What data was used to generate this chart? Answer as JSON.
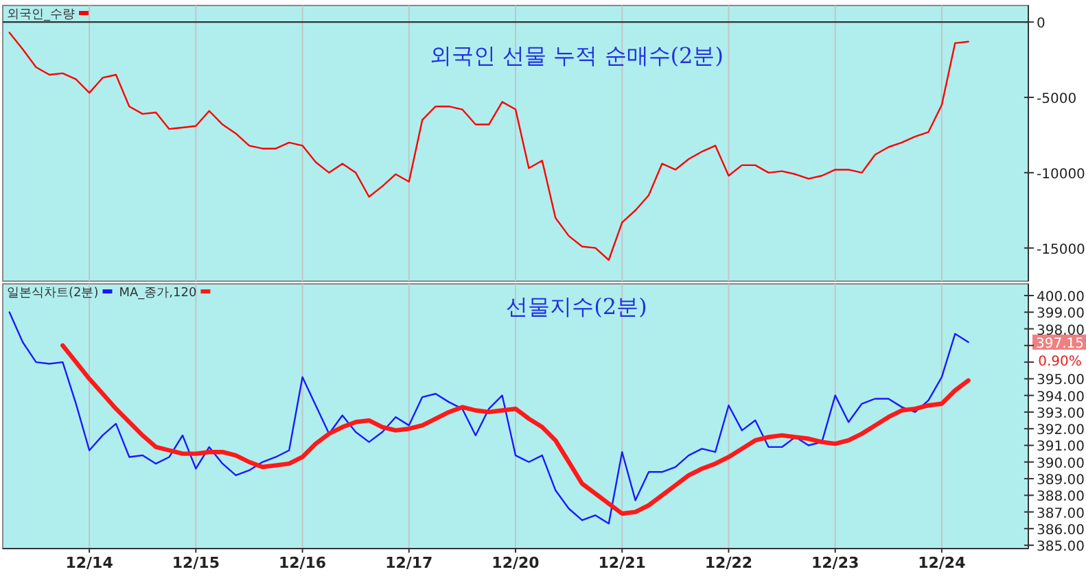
{
  "chart_data": [
    {
      "type": "line",
      "title": "외국인 선물 누적 순매수(2분)",
      "legend": "top left",
      "grid": "x",
      "tick_labels": "y",
      "categories": [
        null,
        null,
        null,
        null,
        null,
        null,
        null,
        null,
        null,
        null,
        null,
        null,
        null,
        null,
        null,
        null,
        null,
        null,
        null,
        null,
        null,
        null,
        null,
        null,
        null,
        null,
        null,
        null,
        null,
        null,
        null,
        null,
        null,
        null,
        null,
        null,
        null,
        null,
        null,
        null,
        null,
        null,
        null,
        null,
        null,
        null,
        null,
        null,
        null,
        null,
        null,
        null,
        null,
        null,
        null,
        null,
        null,
        null,
        null,
        null,
        null,
        null,
        null,
        null,
        null,
        null,
        null,
        null,
        null,
        null,
        null,
        null,
        null,
        null,
        null,
        null,
        null
      ],
      "ylim": [
        -17200,
        1100
      ],
      "yticks": [
        0,
        -5000,
        -10000,
        -15000
      ],
      "ref_lines": [
        {
          "axis": "y",
          "value": 0,
          "color": "#303030"
        }
      ],
      "series": [
        {
          "name": "외국인_수량",
          "color": "#ff0000",
          "values": [
            -700,
            -1800,
            -3000,
            -3500,
            -3400,
            -3800,
            -4700,
            -3700,
            -3500,
            -5600,
            -6100,
            -6000,
            -7100,
            -7000,
            -6900,
            -5900,
            -6800,
            -7400,
            -8200,
            -8400,
            -8400,
            -8000,
            -8200,
            -9300,
            -10000,
            -9400,
            -10000,
            -11600,
            -10900,
            -10100,
            -10600,
            -6500,
            -5600,
            -5600,
            -5800,
            -6800,
            -6800,
            -5300,
            -5800,
            -9700,
            -9200,
            -13000,
            -14200,
            -14900,
            -15000,
            -15800,
            -13300,
            -12500,
            -11500,
            -9400,
            -9800,
            -9100,
            -8600,
            -8200,
            -10200,
            -9500,
            -9500,
            -10000,
            -9900,
            -10100,
            -10400,
            -10200,
            -9800,
            -9800,
            -10000,
            -8800,
            -8300,
            -8000,
            -7600,
            -7300,
            -5500,
            -1400,
            -1300,
            null,
            null,
            null,
            null
          ]
        }
      ]
    },
    {
      "type": "line",
      "title": "선물지수(2분)",
      "legend": "top left",
      "grid": "x",
      "categories": [
        null,
        null,
        null,
        null,
        null,
        null,
        "12/14",
        null,
        null,
        null,
        null,
        null,
        null,
        null,
        "12/15",
        null,
        null,
        null,
        null,
        null,
        null,
        null,
        "12/16",
        null,
        null,
        null,
        null,
        null,
        null,
        null,
        "12/17",
        null,
        null,
        null,
        null,
        null,
        null,
        null,
        "12/20",
        null,
        null,
        null,
        null,
        null,
        null,
        null,
        "12/21",
        null,
        null,
        null,
        null,
        null,
        null,
        null,
        "12/22",
        null,
        null,
        null,
        null,
        null,
        null,
        null,
        "12/23",
        null,
        null,
        null,
        null,
        null,
        null,
        null,
        "12/24",
        null,
        null,
        null,
        null,
        null,
        null
      ],
      "ylim": [
        384.8,
        400.7
      ],
      "yticks": [
        {
          "value": 385,
          "label": "385.00"
        },
        {
          "value": 386,
          "label": "386.00"
        },
        {
          "value": 387,
          "label": "387.00"
        },
        {
          "value": 388,
          "label": "388.00"
        },
        {
          "value": 389,
          "label": "389.00"
        },
        {
          "value": 390,
          "label": "390.00"
        },
        {
          "value": 391,
          "label": "391.00"
        },
        {
          "value": 392,
          "label": "392.00"
        },
        {
          "value": 393,
          "label": "393.00"
        },
        {
          "value": 394,
          "label": "394.00"
        },
        {
          "value": 395,
          "label": "395.00"
        },
        {
          "value": 396,
          "label": null
        },
        {
          "value": 397,
          "label": null
        },
        {
          "value": 398,
          "label": "398.00"
        },
        {
          "value": 399,
          "label": "399.00"
        },
        {
          "value": 400,
          "label": "400.00"
        }
      ],
      "annotations": [
        "397.15",
        "0.90%"
      ],
      "series": [
        {
          "name": "일본식차트(2분)",
          "color": "#1a1aff",
          "values": [
            399.0,
            397.2,
            396.0,
            395.9,
            396.0,
            393.5,
            390.7,
            391.6,
            392.3,
            390.3,
            390.4,
            389.9,
            390.3,
            391.6,
            389.6,
            390.9,
            389.9,
            389.2,
            389.5,
            390.0,
            390.3,
            390.7,
            395.1,
            393.4,
            391.7,
            392.8,
            391.8,
            391.2,
            391.8,
            392.7,
            392.2,
            393.9,
            394.1,
            393.6,
            393.2,
            391.6,
            393.2,
            394.0,
            390.4,
            390.0,
            390.4,
            388.3,
            387.2,
            386.5,
            386.8,
            386.3,
            390.6,
            387.7,
            389.4,
            389.4,
            389.7,
            390.4,
            390.8,
            390.6,
            393.4,
            391.9,
            392.5,
            390.9,
            390.9,
            391.5,
            391.0,
            391.2,
            394.0,
            392.4,
            393.5,
            393.8,
            393.8,
            393.3,
            393.0,
            393.7,
            395.1,
            397.7,
            397.2,
            null,
            null,
            null,
            null
          ]
        },
        {
          "name": "MA_종가,120",
          "color": "#ff1a1a",
          "values": [
            null,
            null,
            null,
            null,
            397.0,
            396.0,
            395.0,
            394.1,
            393.2,
            392.4,
            391.6,
            390.9,
            390.7,
            390.5,
            390.5,
            390.6,
            390.6,
            390.4,
            390.0,
            389.7,
            389.8,
            389.9,
            390.3,
            391.1,
            391.7,
            392.1,
            392.4,
            392.5,
            392.1,
            391.9,
            392.0,
            392.2,
            392.6,
            393.0,
            393.3,
            393.1,
            393.0,
            393.1,
            393.2,
            392.6,
            392.1,
            391.3,
            390.0,
            388.7,
            388.1,
            387.5,
            386.9,
            387.0,
            387.4,
            388.0,
            388.6,
            389.2,
            389.6,
            389.9,
            390.3,
            390.8,
            391.3,
            391.5,
            391.6,
            391.5,
            391.4,
            391.2,
            391.1,
            391.3,
            391.7,
            392.2,
            392.7,
            393.1,
            393.2,
            393.4,
            393.5,
            394.3,
            394.9,
            null,
            null,
            null,
            null
          ]
        }
      ]
    }
  ]
}
